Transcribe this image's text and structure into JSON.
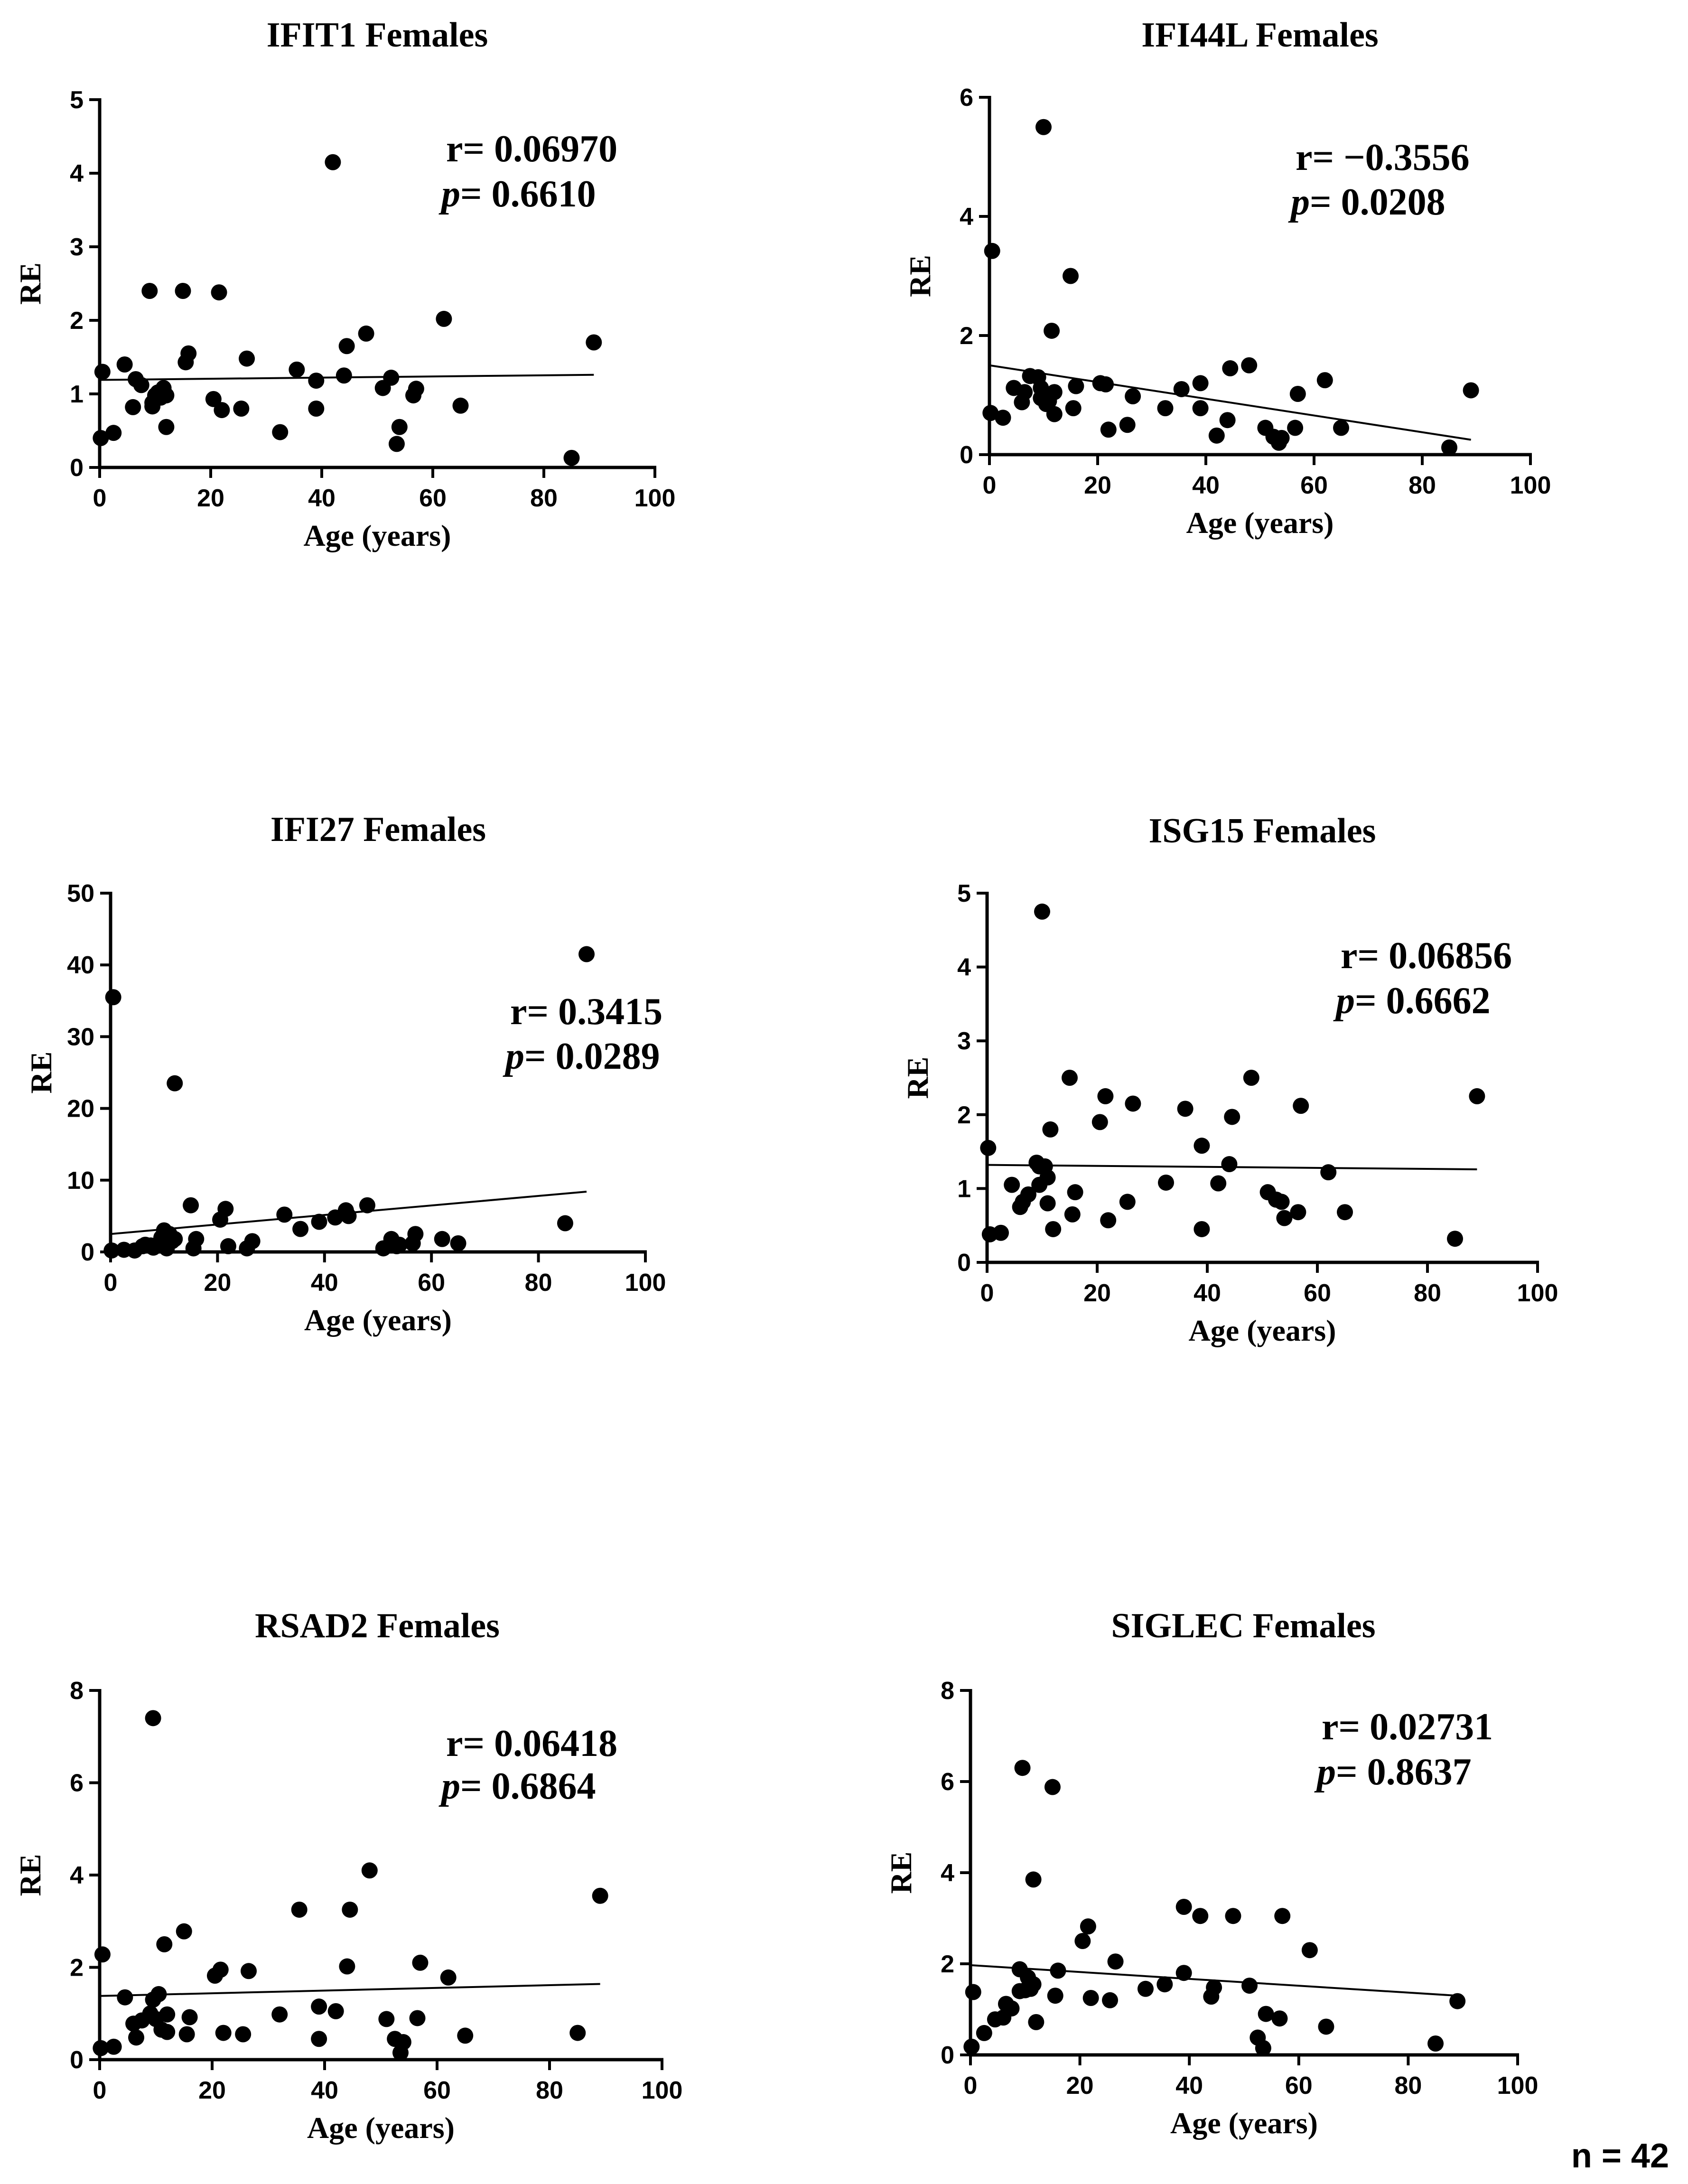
{
  "figure": {
    "n_label": "n = 42"
  },
  "chart_data": [
    {
      "type": "scatter",
      "title": "IFIT1 Females",
      "xlabel": "Age (years)",
      "ylabel": "RE",
      "xlim": [
        0,
        100
      ],
      "ylim": [
        0,
        5
      ],
      "xticks": [
        0,
        20,
        40,
        60,
        80,
        100
      ],
      "yticks": [
        0,
        1,
        2,
        3,
        4,
        5
      ],
      "r_text": "r= 0.06970",
      "p_label": "p",
      "p_value": "= 0.6610",
      "fit_line": {
        "x": [
          0,
          89
        ],
        "y": [
          1.19,
          1.26
        ]
      },
      "x": [
        0.2,
        0.5,
        2.5,
        4.5,
        6,
        6.5,
        7.5,
        9,
        9.5,
        10,
        10.5,
        11,
        11.5,
        12,
        15,
        15.5,
        16,
        20.5,
        21.5,
        22,
        25.5,
        26.5,
        32.5,
        35.5,
        39,
        39,
        44,
        44.5,
        48,
        51,
        52.5,
        53.5,
        54,
        56.5,
        57,
        62,
        65,
        85,
        89,
        9.5,
        42,
        12
      ],
      "y": [
        0.4,
        1.3,
        0.47,
        1.4,
        0.82,
        1.2,
        1.12,
        2.4,
        0.83,
        0.98,
        1.02,
        0.95,
        1.08,
        0.55,
        2.4,
        1.43,
        1.55,
        0.93,
        2.38,
        0.78,
        0.8,
        1.48,
        0.48,
        1.33,
        0.8,
        1.18,
        1.25,
        1.65,
        1.82,
        1.08,
        1.22,
        0.32,
        0.55,
        0.98,
        1.07,
        2.02,
        0.84,
        0.13,
        1.7,
        0.88,
        4.15,
        0.98
      ]
    },
    {
      "type": "scatter",
      "title": "IFI44L Females",
      "xlabel": "Age (years)",
      "ylabel": "RE",
      "xlim": [
        0,
        100
      ],
      "ylim": [
        0,
        6
      ],
      "xticks": [
        0,
        20,
        40,
        60,
        80,
        100
      ],
      "yticks": [
        0,
        2,
        4,
        6
      ],
      "r_text": "r= −0.3556",
      "p_label": "p",
      "p_value": "= 0.0208",
      "fit_line": {
        "x": [
          0,
          89
        ],
        "y": [
          1.5,
          0.25
        ]
      },
      "x": [
        0.2,
        0.5,
        2.5,
        4.5,
        6,
        6.5,
        7.5,
        9,
        9.5,
        10,
        10.5,
        11,
        11.5,
        12,
        15,
        15.5,
        16,
        20.5,
        21.5,
        22,
        25.5,
        26.5,
        32.5,
        35.5,
        39,
        39,
        42,
        44,
        44.5,
        48,
        51,
        52.5,
        53.5,
        54,
        56.5,
        57,
        62,
        65,
        85,
        89,
        9.5,
        12
      ],
      "y": [
        0.7,
        3.42,
        0.62,
        1.12,
        0.88,
        1.05,
        1.32,
        1.3,
        0.95,
        5.5,
        0.85,
        0.9,
        2.08,
        0.68,
        3.0,
        0.78,
        1.15,
        1.2,
        1.18,
        0.42,
        0.5,
        0.98,
        0.78,
        1.1,
        0.78,
        1.2,
        0.32,
        0.58,
        1.45,
        1.5,
        0.45,
        0.3,
        0.2,
        0.28,
        0.45,
        1.02,
        1.25,
        0.45,
        0.12,
        1.08,
        1.12,
        1.05
      ]
    },
    {
      "type": "scatter",
      "title": "IFI27 Females",
      "xlabel": "Age (years)",
      "ylabel": "RE",
      "xlim": [
        0,
        100
      ],
      "ylim": [
        0,
        50
      ],
      "xticks": [
        0,
        20,
        40,
        60,
        80,
        100
      ],
      "yticks": [
        0,
        10,
        20,
        30,
        40,
        50
      ],
      "r_text": "r= 0.3415",
      "p_label": "p",
      "p_value": "= 0.0289",
      "fit_line": {
        "x": [
          0,
          89
        ],
        "y": [
          2.5,
          8.4
        ]
      },
      "x": [
        0.2,
        0.5,
        2.5,
        4.5,
        6,
        6.5,
        7.5,
        9,
        9.5,
        10,
        10.5,
        11,
        11.5,
        12,
        15,
        15.5,
        16,
        20.5,
        21.5,
        22,
        25.5,
        26.5,
        32.5,
        35.5,
        39,
        42,
        44,
        44.5,
        48,
        51,
        52.5,
        53.5,
        54,
        56.5,
        57,
        62,
        65,
        85,
        89,
        12,
        10,
        8
      ],
      "y": [
        0.2,
        35.5,
        0.3,
        0.2,
        0.8,
        1.0,
        0.9,
        1.1,
        2.0,
        3.0,
        0.5,
        2.5,
        1.5,
        23.5,
        6.5,
        0.5,
        1.8,
        4.5,
        6.0,
        0.8,
        0.5,
        1.5,
        5.2,
        3.2,
        4.2,
        4.8,
        5.8,
        5.0,
        6.5,
        0.5,
        1.8,
        0.8,
        1.0,
        1.2,
        2.5,
        1.8,
        1.2,
        4.0,
        41.5,
        1.8,
        0.8,
        0.6
      ]
    },
    {
      "type": "scatter",
      "title": "ISG15 Females",
      "xlabel": "Age (years)",
      "ylabel": "RE",
      "xlim": [
        0,
        100
      ],
      "ylim": [
        0,
        5
      ],
      "xticks": [
        0,
        20,
        40,
        60,
        80,
        100
      ],
      "yticks": [
        0,
        1,
        2,
        3,
        4,
        5
      ],
      "r_text": "r= 0.06856",
      "p_label": "p",
      "p_value": "= 0.6662",
      "fit_line": {
        "x": [
          0,
          89
        ],
        "y": [
          1.32,
          1.26
        ]
      },
      "x": [
        0.2,
        0.5,
        2.5,
        4.5,
        6,
        6.5,
        7.5,
        9,
        9.5,
        10,
        10.5,
        11,
        11.5,
        12,
        15,
        15.5,
        16,
        20.5,
        21.5,
        22,
        25.5,
        26.5,
        32.5,
        36,
        39,
        39,
        42,
        44,
        44.5,
        48,
        51,
        52.5,
        53.5,
        54,
        56.5,
        57,
        62,
        65,
        85,
        89,
        9.5,
        11
      ],
      "y": [
        1.55,
        0.38,
        0.4,
        1.05,
        0.75,
        0.82,
        0.92,
        1.35,
        1.05,
        4.75,
        1.3,
        0.8,
        1.8,
        0.45,
        2.5,
        0.65,
        0.95,
        1.9,
        2.25,
        0.57,
        0.82,
        2.15,
        1.08,
        2.08,
        0.45,
        1.58,
        1.07,
        1.33,
        1.97,
        2.5,
        0.95,
        0.85,
        0.82,
        0.6,
        0.68,
        2.12,
        1.22,
        0.68,
        0.32,
        2.25,
        1.3,
        1.15
      ]
    },
    {
      "type": "scatter",
      "title": "RSAD2 Females",
      "xlabel": "Age (years)",
      "ylabel": "RE",
      "xlim": [
        0,
        100
      ],
      "ylim": [
        0,
        8
      ],
      "xticks": [
        0,
        20,
        40,
        60,
        80,
        100
      ],
      "yticks": [
        0,
        2,
        4,
        6,
        8
      ],
      "r_text": "r= 0.06418",
      "p_label": "p",
      "p_value": "= 0.6864",
      "fit_line": {
        "x": [
          0,
          89
        ],
        "y": [
          1.38,
          1.64
        ]
      },
      "x": [
        0.2,
        0.5,
        2.5,
        4.5,
        6,
        6.5,
        7.5,
        9,
        9.5,
        10,
        10.5,
        11,
        11.5,
        12,
        15,
        15.5,
        16,
        20.5,
        21.5,
        22,
        25.5,
        26.5,
        32,
        35.5,
        39,
        39,
        42,
        44,
        44.5,
        48,
        51,
        52.5,
        53.5,
        54,
        56.5,
        57,
        62,
        65,
        85,
        89,
        12,
        9.5
      ],
      "y": [
        0.25,
        2.28,
        0.28,
        1.35,
        0.78,
        0.48,
        0.85,
        1.0,
        7.4,
        0.88,
        1.42,
        0.65,
        2.5,
        0.98,
        2.78,
        0.55,
        0.92,
        1.82,
        1.95,
        0.58,
        0.55,
        1.92,
        0.98,
        3.25,
        0.45,
        1.15,
        1.05,
        2.02,
        3.25,
        4.1,
        0.88,
        0.45,
        0.15,
        0.38,
        0.9,
        2.1,
        1.78,
        0.52,
        0.58,
        3.55,
        0.6,
        1.3
      ]
    },
    {
      "type": "scatter",
      "title": "SIGLEC Females",
      "xlabel": "Age (years)",
      "ylabel": "RE",
      "xlim": [
        0,
        100
      ],
      "ylim": [
        0,
        8
      ],
      "xticks": [
        0,
        20,
        40,
        60,
        80,
        100
      ],
      "yticks": [
        0,
        2,
        4,
        6,
        8
      ],
      "r_text": "r= 0.02731",
      "p_label": "p",
      "p_value": "= 0.8637",
      "fit_line": {
        "x": [
          0,
          89
        ],
        "y": [
          1.97,
          1.3
        ]
      },
      "x": [
        0.2,
        0.5,
        2.5,
        4.5,
        6,
        6.5,
        7.5,
        9,
        9.5,
        10,
        10.5,
        11,
        11.5,
        12,
        15,
        15.5,
        16,
        20.5,
        21.5,
        22,
        25.5,
        26.5,
        32,
        35.5,
        39,
        39,
        42,
        44,
        44.5,
        48,
        51,
        52.5,
        53.5,
        54,
        56.5,
        57,
        62,
        65,
        85,
        89,
        9,
        11.5
      ],
      "y": [
        0.18,
        1.38,
        0.48,
        0.78,
        0.82,
        1.12,
        1.02,
        1.88,
        6.3,
        1.42,
        1.7,
        1.45,
        3.85,
        0.72,
        5.88,
        1.3,
        1.85,
        2.5,
        2.82,
        1.25,
        1.2,
        2.05,
        1.45,
        1.55,
        3.25,
        1.8,
        3.05,
        1.28,
        1.48,
        3.05,
        1.52,
        0.38,
        0.15,
        0.9,
        0.8,
        3.05,
        2.3,
        0.62,
        0.25,
        1.18,
        1.4,
        1.55
      ]
    }
  ]
}
